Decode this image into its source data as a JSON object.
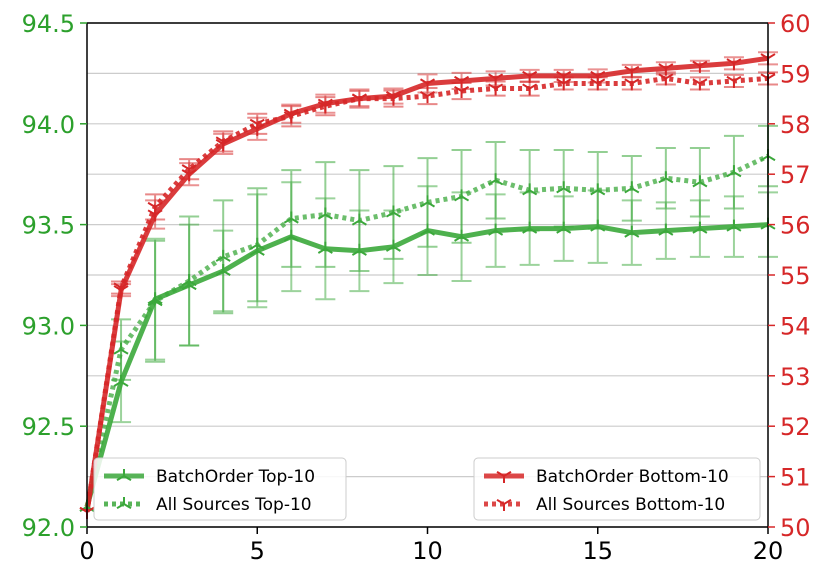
{
  "chart_data": {
    "type": "line",
    "title": "",
    "xlabel": "",
    "ylabel_left": "",
    "ylabel_right": "",
    "xlim": [
      0,
      20
    ],
    "ylim_left": [
      92.0,
      94.5
    ],
    "ylim_right": [
      50,
      60
    ],
    "grid": "horizontal",
    "x_ticks": [
      "0",
      "5",
      "10",
      "15",
      "20"
    ],
    "y_ticks_left": [
      "92.0",
      "92.5",
      "93.0",
      "93.5",
      "94.0",
      "94.5"
    ],
    "y_ticks_right": [
      "50",
      "51",
      "52",
      "53",
      "54",
      "55",
      "56",
      "57",
      "58",
      "59",
      "60"
    ],
    "x": [
      0,
      1,
      2,
      3,
      4,
      5,
      6,
      7,
      8,
      9,
      10,
      11,
      12,
      13,
      14,
      15,
      16,
      17,
      18,
      19,
      20
    ],
    "series": [
      {
        "name": "BatchOrder Top-10",
        "axis": "left",
        "color": "#3ba83b",
        "style": "solid",
        "values": [
          92.1,
          92.72,
          93.13,
          93.2,
          93.27,
          93.37,
          93.44,
          93.38,
          93.37,
          93.39,
          93.47,
          93.44,
          93.47,
          93.48,
          93.48,
          93.49,
          93.46,
          93.47,
          93.48,
          93.49,
          93.5
        ],
        "err": [
          0,
          0.2,
          0.3,
          0.3,
          0.2,
          0.28,
          0.27,
          0.25,
          0.2,
          0.18,
          0.22,
          0.22,
          0.18,
          0.18,
          0.16,
          0.18,
          0.16,
          0.14,
          0.14,
          0.15,
          0.16
        ]
      },
      {
        "name": "All Sources Top-10",
        "axis": "left",
        "color": "#3ba83b",
        "style": "dotted",
        "values": [
          92.1,
          92.88,
          93.12,
          93.22,
          93.34,
          93.4,
          93.53,
          93.55,
          93.52,
          93.56,
          93.61,
          93.64,
          93.72,
          93.67,
          93.68,
          93.67,
          93.68,
          93.73,
          93.71,
          93.76,
          93.84
        ],
        "err": [
          0,
          0.15,
          0.3,
          0.32,
          0.28,
          0.28,
          0.24,
          0.26,
          0.25,
          0.23,
          0.22,
          0.23,
          0.19,
          0.2,
          0.19,
          0.19,
          0.16,
          0.15,
          0.17,
          0.18,
          0.15
        ]
      },
      {
        "name": "BatchOrder Bottom-10",
        "axis": "right",
        "color": "#d62728",
        "style": "solid",
        "values": [
          50.3,
          54.7,
          56.2,
          57.0,
          57.6,
          57.9,
          58.2,
          58.4,
          58.5,
          58.55,
          58.8,
          58.85,
          58.9,
          58.95,
          58.95,
          58.95,
          59.05,
          59.1,
          59.15,
          59.2,
          59.3
        ],
        "err": [
          0,
          0.12,
          0.28,
          0.22,
          0.2,
          0.22,
          0.18,
          0.18,
          0.15,
          0.15,
          0.18,
          0.16,
          0.14,
          0.12,
          0.12,
          0.13,
          0.12,
          0.12,
          0.1,
          0.12,
          0.12
        ]
      },
      {
        "name": "All Sources Bottom-10",
        "axis": "right",
        "color": "#d62728",
        "style": "dotted",
        "values": [
          50.3,
          54.75,
          56.35,
          57.1,
          57.65,
          58.0,
          58.15,
          58.35,
          58.5,
          58.5,
          58.55,
          58.65,
          58.7,
          58.7,
          58.8,
          58.8,
          58.8,
          58.9,
          58.8,
          58.85,
          58.9
        ],
        "err": [
          0,
          0.12,
          0.25,
          0.2,
          0.2,
          0.2,
          0.2,
          0.18,
          0.18,
          0.16,
          0.16,
          0.16,
          0.14,
          0.14,
          0.12,
          0.12,
          0.12,
          0.12,
          0.12,
          0.12,
          0.12
        ]
      }
    ],
    "legends": [
      {
        "placement": "lower-left",
        "entries": [
          "BatchOrder Top-10",
          "All Sources Top-10"
        ]
      },
      {
        "placement": "lower-right",
        "entries": [
          "BatchOrder Bottom-10",
          "All Sources Bottom-10"
        ]
      }
    ],
    "colors": {
      "left_axis": "#2ca02c",
      "right_axis": "#d62728",
      "grid": "#cccccc"
    }
  }
}
